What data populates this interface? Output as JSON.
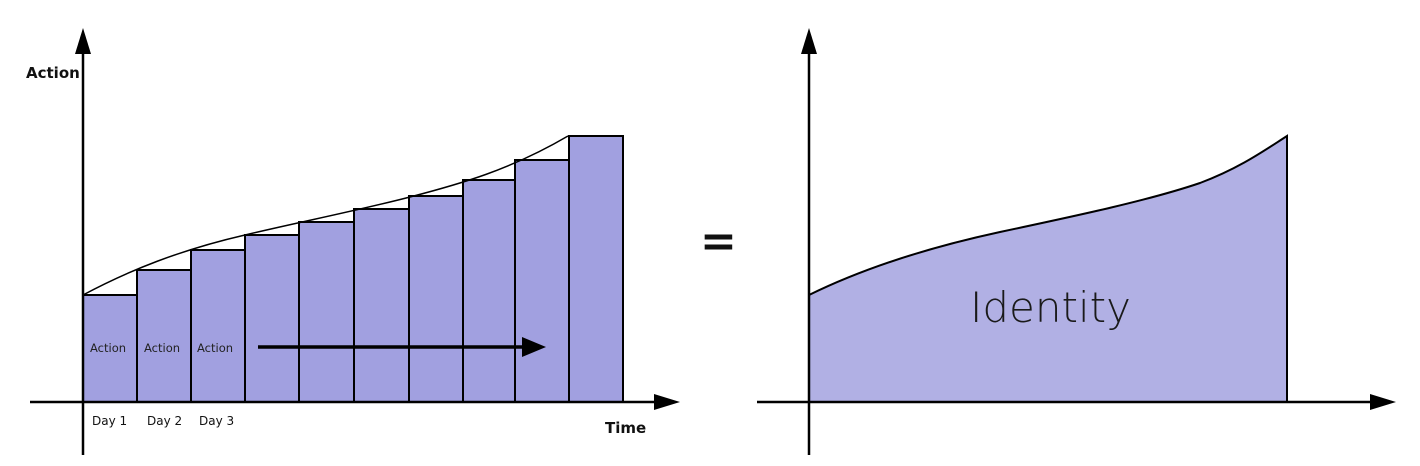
{
  "left_diagram": {
    "y_axis_label": "Action",
    "x_axis_label": "Time",
    "bar_labels": [
      "Action",
      "Action",
      "Action"
    ],
    "day_labels": [
      "Day 1",
      "Day 2",
      "Day 3"
    ],
    "bar_count": 10,
    "bar_fill": "#a1a0e0"
  },
  "equals_sign": "=",
  "right_diagram": {
    "area_label": "Identity",
    "area_fill": "#b1b0e4"
  }
}
